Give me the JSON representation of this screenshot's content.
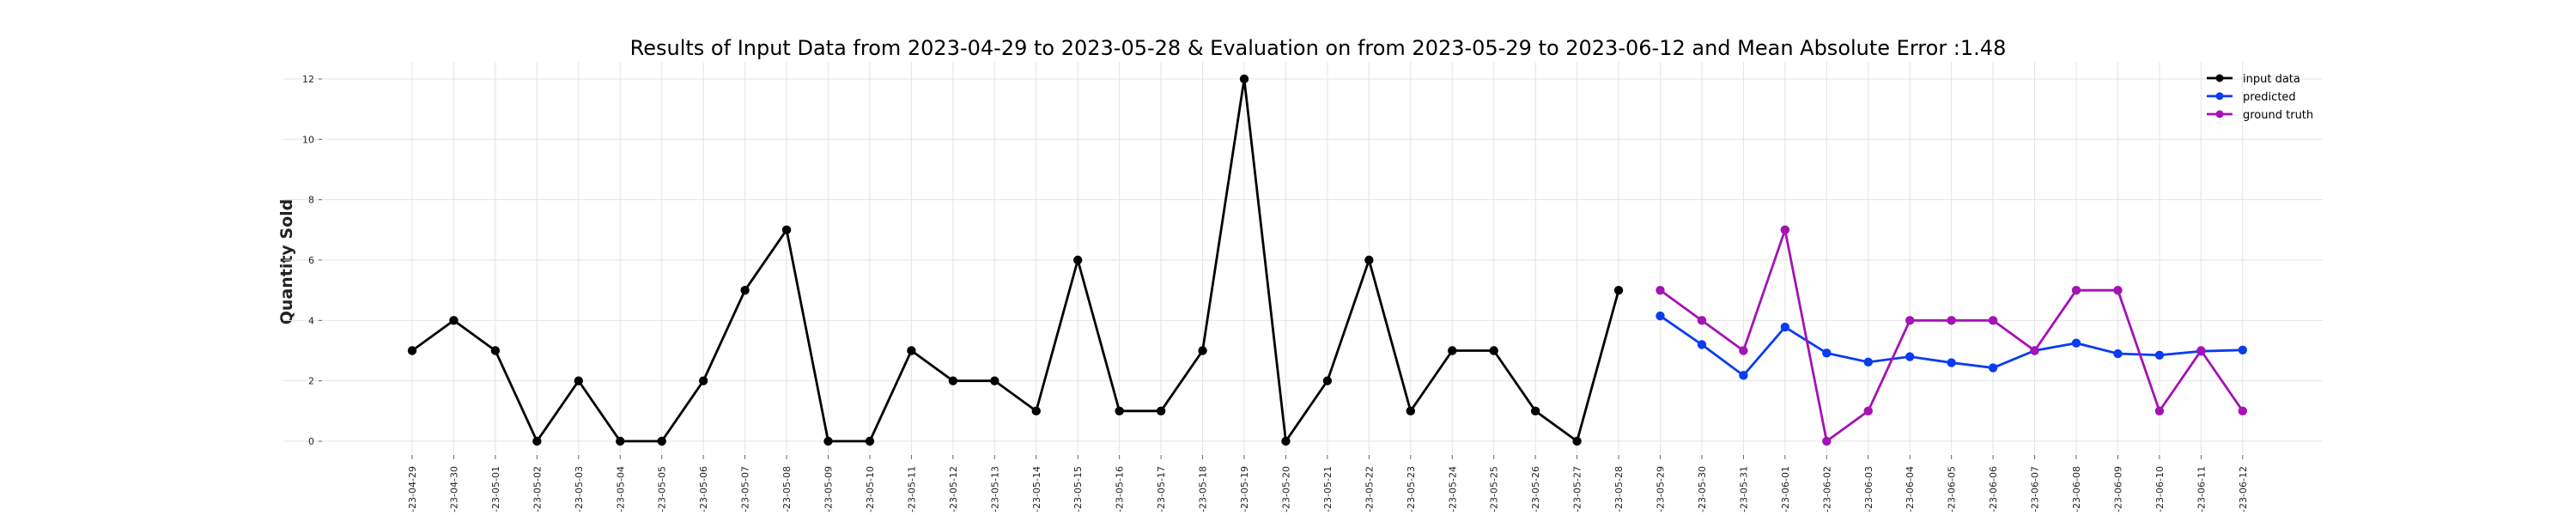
{
  "chart_data": {
    "type": "line",
    "title": "Results of Input Data from 2023-04-29 to 2023-05-28 & Evaluation on from 2023-05-29 to 2023-06-12 and Mean Absolute Error  :1.48",
    "xlabel": "",
    "ylabel": "Quantity Sold",
    "ylim": [
      0,
      12
    ],
    "yticks": [
      0,
      2,
      4,
      6,
      8,
      10,
      12
    ],
    "grid": true,
    "legend_position": "top-right",
    "x": [
      "2023-04-29",
      "2023-04-30",
      "2023-05-01",
      "2023-05-02",
      "2023-05-03",
      "2023-05-04",
      "2023-05-05",
      "2023-05-06",
      "2023-05-07",
      "2023-05-08",
      "2023-05-09",
      "2023-05-10",
      "2023-05-11",
      "2023-05-12",
      "2023-05-13",
      "2023-05-14",
      "2023-05-15",
      "2023-05-16",
      "2023-05-17",
      "2023-05-18",
      "2023-05-19",
      "2023-05-20",
      "2023-05-21",
      "2023-05-22",
      "2023-05-23",
      "2023-05-24",
      "2023-05-25",
      "2023-05-26",
      "2023-05-27",
      "2023-05-28",
      "2023-05-29",
      "2023-05-30",
      "2023-05-31",
      "2023-06-01",
      "2023-06-02",
      "2023-06-03",
      "2023-06-04",
      "2023-06-05",
      "2023-06-06",
      "2023-06-07",
      "2023-06-08",
      "2023-06-09",
      "2023-06-10",
      "2023-06-11",
      "2023-06-12"
    ],
    "tick_labels": [
      "-23-04-29",
      "-23-04-30",
      "-23-05-01",
      "-23-05-02",
      "-23-05-03",
      "-23-05-04",
      "-23-05-05",
      "-23-05-06",
      "-23-05-07",
      "-23-05-08",
      "-23-05-09",
      "-23-05-10",
      "-23-05-11",
      "-23-05-12",
      "-23-05-13",
      "-23-05-14",
      "-23-05-15",
      "-23-05-16",
      "-23-05-17",
      "-23-05-18",
      "-23-05-19",
      "-23-05-20",
      "-23-05-21",
      "-23-05-22",
      "-23-05-23",
      "-23-05-24",
      "-23-05-25",
      "-23-05-26",
      "-23-05-27",
      "-23-05-28",
      "-23-05-29",
      "-23-05-30",
      "-23-05-31",
      "-23-06-01",
      "-23-06-02",
      "-23-06-03",
      "-23-06-04",
      "-23-06-05",
      "-23-06-06",
      "-23-06-07",
      "-23-06-08",
      "-23-06-09",
      "-23-06-10",
      "-23-06-11",
      "-23-06-12"
    ],
    "series": [
      {
        "name": "input data",
        "color": "#000000",
        "x": [
          "2023-04-29",
          "2023-04-30",
          "2023-05-01",
          "2023-05-02",
          "2023-05-03",
          "2023-05-04",
          "2023-05-05",
          "2023-05-06",
          "2023-05-07",
          "2023-05-08",
          "2023-05-09",
          "2023-05-10",
          "2023-05-11",
          "2023-05-12",
          "2023-05-13",
          "2023-05-14",
          "2023-05-15",
          "2023-05-16",
          "2023-05-17",
          "2023-05-18",
          "2023-05-19",
          "2023-05-20",
          "2023-05-21",
          "2023-05-22",
          "2023-05-23",
          "2023-05-24",
          "2023-05-25",
          "2023-05-26",
          "2023-05-27",
          "2023-05-28"
        ],
        "values": [
          3,
          4,
          3,
          0,
          2,
          0,
          0,
          2,
          5,
          7,
          0,
          0,
          3,
          2,
          2,
          1,
          6,
          1,
          1,
          3,
          12,
          0,
          2,
          6,
          1,
          3,
          3,
          1,
          0,
          5
        ]
      },
      {
        "name": "predicted",
        "color": "#0a3cf0",
        "x": [
          "2023-05-29",
          "2023-05-30",
          "2023-05-31",
          "2023-06-01",
          "2023-06-02",
          "2023-06-03",
          "2023-06-04",
          "2023-06-05",
          "2023-06-06",
          "2023-06-07",
          "2023-06-08",
          "2023-06-09",
          "2023-06-10",
          "2023-06-11",
          "2023-06-12"
        ],
        "values": [
          4.15,
          3.2,
          2.18,
          3.78,
          2.92,
          2.62,
          2.8,
          2.6,
          2.43,
          3.0,
          3.25,
          2.9,
          2.85,
          2.98,
          3.02
        ]
      },
      {
        "name": "ground truth",
        "color": "#a512b5",
        "x": [
          "2023-05-29",
          "2023-05-30",
          "2023-05-31",
          "2023-06-01",
          "2023-06-02",
          "2023-06-03",
          "2023-06-04",
          "2023-06-05",
          "2023-06-06",
          "2023-06-07",
          "2023-06-08",
          "2023-06-09",
          "2023-06-10",
          "2023-06-11",
          "2023-06-12"
        ],
        "values": [
          5,
          4,
          3,
          7,
          0,
          1,
          4,
          4,
          4,
          3,
          5,
          5,
          1,
          3,
          1
        ]
      }
    ]
  }
}
